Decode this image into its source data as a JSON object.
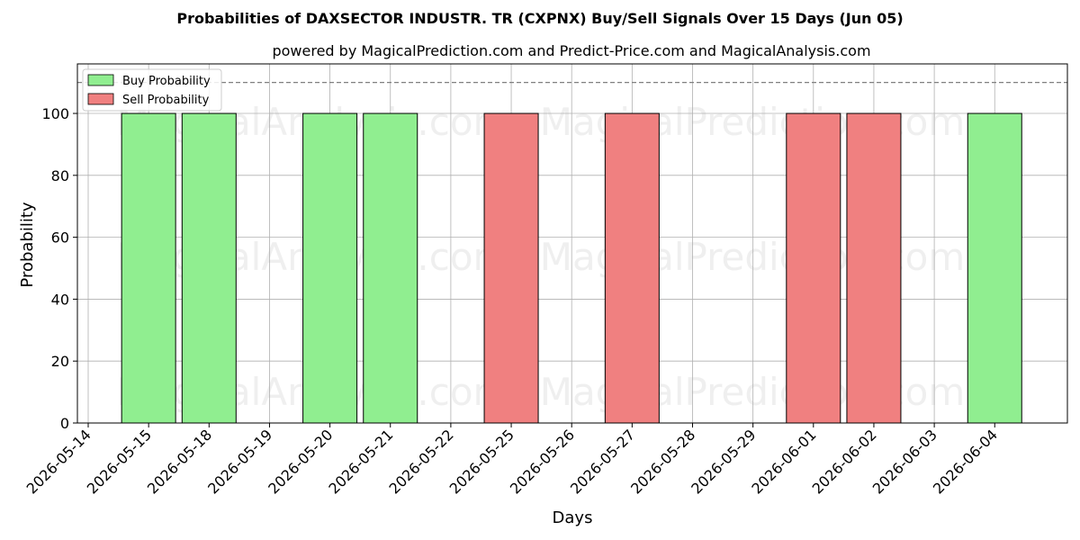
{
  "chart_data": {
    "type": "bar",
    "title": "Probabilities of DAXSECTOR INDUSTR. TR (CXPNX) Buy/Sell Signals Over 15 Days (Jun 05)",
    "subtitle": "powered by MagicalPrediction.com and Predict-Price.com and MagicalAnalysis.com",
    "xlabel": "Days",
    "ylabel": "Probability",
    "ylim": [
      0,
      116
    ],
    "yticks": [
      0,
      20,
      40,
      60,
      80,
      100
    ],
    "reference_line": 110,
    "grid": true,
    "legend_position": "top-left",
    "categories": [
      "2026-05-14",
      "2026-05-15",
      "2026-05-18",
      "2026-05-19",
      "2026-05-20",
      "2026-05-21",
      "2026-05-22",
      "2026-05-25",
      "2026-05-26",
      "2026-05-27",
      "2026-05-28",
      "2026-05-29",
      "2026-06-01",
      "2026-06-02",
      "2026-06-03",
      "2026-06-04"
    ],
    "series": [
      {
        "name": "Buy Probability",
        "color": "#90ee90",
        "values": [
          0,
          100,
          100,
          0,
          100,
          100,
          0,
          0,
          0,
          0,
          0,
          0,
          0,
          0,
          0,
          100
        ]
      },
      {
        "name": "Sell Probability",
        "color": "#f08080",
        "values": [
          0,
          0,
          0,
          0,
          0,
          0,
          0,
          100,
          0,
          100,
          0,
          0,
          100,
          100,
          0,
          0
        ]
      }
    ],
    "watermarks": [
      "MagicalAnalysis.com",
      "MagicalPrediction.com"
    ]
  }
}
